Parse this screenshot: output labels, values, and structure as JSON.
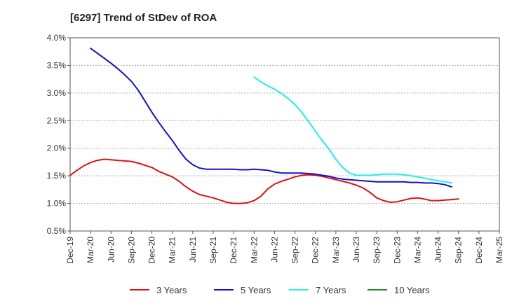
{
  "chart_data": {
    "type": "line",
    "title": "[6297]  Trend of StDev of ROA",
    "xlabel": "",
    "ylabel": "",
    "ylim": [
      0.5,
      4.0
    ],
    "y_ticks": [
      0.5,
      1.0,
      1.5,
      2.0,
      2.5,
      3.0,
      3.5,
      4.0
    ],
    "y_tick_labels": [
      "0.5%",
      "1.0%",
      "1.5%",
      "2.0%",
      "2.5%",
      "3.0%",
      "3.5%",
      "4.0%"
    ],
    "x_tick_labels": [
      "Dec-19",
      "Mar-20",
      "Jun-20",
      "Sep-20",
      "Dec-20",
      "Mar-21",
      "Jun-21",
      "Sep-21",
      "Dec-21",
      "Mar-22",
      "Jun-22",
      "Sep-22",
      "Dec-22",
      "Mar-23",
      "Jun-23",
      "Sep-23",
      "Dec-23",
      "Mar-24",
      "Jun-24",
      "Sep-24",
      "Dec-24",
      "Mar-25"
    ],
    "grid": "horizontal-dashed",
    "legend_position": "bottom",
    "series": [
      {
        "name": "3 Years",
        "color": "#dd1111",
        "points": [
          [
            0,
            1.51
          ],
          [
            0.333,
            1.6
          ],
          [
            0.667,
            1.68
          ],
          [
            1,
            1.74
          ],
          [
            1.333,
            1.78
          ],
          [
            1.667,
            1.8
          ],
          [
            2,
            1.79
          ],
          [
            2.333,
            1.78
          ],
          [
            2.667,
            1.77
          ],
          [
            3,
            1.76
          ],
          [
            3.333,
            1.73
          ],
          [
            3.667,
            1.69
          ],
          [
            4,
            1.65
          ],
          [
            4.333,
            1.58
          ],
          [
            4.667,
            1.53
          ],
          [
            5,
            1.48
          ],
          [
            5.333,
            1.4
          ],
          [
            5.667,
            1.3
          ],
          [
            6,
            1.22
          ],
          [
            6.333,
            1.16
          ],
          [
            6.667,
            1.13
          ],
          [
            7,
            1.1
          ],
          [
            7.333,
            1.06
          ],
          [
            7.667,
            1.02
          ],
          [
            8,
            1.0
          ],
          [
            8.333,
            1.0
          ],
          [
            8.667,
            1.01
          ],
          [
            9,
            1.05
          ],
          [
            9.333,
            1.13
          ],
          [
            9.667,
            1.26
          ],
          [
            10,
            1.35
          ],
          [
            10.333,
            1.4
          ],
          [
            10.667,
            1.44
          ],
          [
            11,
            1.48
          ],
          [
            11.333,
            1.51
          ],
          [
            11.667,
            1.52
          ],
          [
            12,
            1.51
          ],
          [
            12.333,
            1.49
          ],
          [
            12.667,
            1.46
          ],
          [
            13,
            1.43
          ],
          [
            13.333,
            1.4
          ],
          [
            13.667,
            1.37
          ],
          [
            14,
            1.33
          ],
          [
            14.333,
            1.28
          ],
          [
            14.667,
            1.2
          ],
          [
            15,
            1.1
          ],
          [
            15.333,
            1.05
          ],
          [
            15.667,
            1.02
          ],
          [
            16,
            1.03
          ],
          [
            16.333,
            1.06
          ],
          [
            16.667,
            1.09
          ],
          [
            17,
            1.1
          ],
          [
            17.333,
            1.08
          ],
          [
            17.667,
            1.05
          ],
          [
            18,
            1.05
          ],
          [
            18.333,
            1.06
          ],
          [
            18.667,
            1.07
          ],
          [
            19,
            1.08
          ]
        ]
      },
      {
        "name": "5 Years",
        "color": "#1111cc",
        "points": [
          [
            1,
            3.81
          ],
          [
            1.333,
            3.72
          ],
          [
            1.667,
            3.63
          ],
          [
            2,
            3.54
          ],
          [
            2.333,
            3.44
          ],
          [
            2.667,
            3.33
          ],
          [
            3,
            3.21
          ],
          [
            3.333,
            3.05
          ],
          [
            3.667,
            2.85
          ],
          [
            4,
            2.65
          ],
          [
            4.333,
            2.47
          ],
          [
            4.667,
            2.3
          ],
          [
            5,
            2.14
          ],
          [
            5.333,
            1.96
          ],
          [
            5.667,
            1.8
          ],
          [
            6,
            1.7
          ],
          [
            6.333,
            1.64
          ],
          [
            6.667,
            1.62
          ],
          [
            7,
            1.62
          ],
          [
            7.333,
            1.62
          ],
          [
            7.667,
            1.62
          ],
          [
            8,
            1.62
          ],
          [
            8.333,
            1.61
          ],
          [
            8.667,
            1.61
          ],
          [
            9,
            1.62
          ],
          [
            9.333,
            1.61
          ],
          [
            9.667,
            1.6
          ],
          [
            10,
            1.57
          ],
          [
            10.333,
            1.55
          ],
          [
            10.667,
            1.55
          ],
          [
            11,
            1.55
          ],
          [
            11.333,
            1.55
          ],
          [
            11.667,
            1.54
          ],
          [
            12,
            1.53
          ],
          [
            12.333,
            1.51
          ],
          [
            12.667,
            1.49
          ],
          [
            13,
            1.46
          ],
          [
            13.333,
            1.44
          ],
          [
            13.667,
            1.43
          ],
          [
            14,
            1.42
          ],
          [
            14.333,
            1.41
          ],
          [
            14.667,
            1.4
          ],
          [
            15,
            1.39
          ],
          [
            15.333,
            1.39
          ],
          [
            15.667,
            1.39
          ],
          [
            16,
            1.39
          ],
          [
            16.333,
            1.39
          ],
          [
            16.667,
            1.38
          ],
          [
            17,
            1.38
          ],
          [
            17.333,
            1.37
          ],
          [
            17.667,
            1.37
          ],
          [
            18,
            1.36
          ],
          [
            18.333,
            1.34
          ],
          [
            18.667,
            1.3
          ]
        ]
      },
      {
        "name": "7 Years",
        "color": "#22eeee",
        "points": [
          [
            9,
            3.29
          ],
          [
            9.333,
            3.2
          ],
          [
            9.667,
            3.13
          ],
          [
            10,
            3.07
          ],
          [
            10.333,
            2.99
          ],
          [
            10.667,
            2.9
          ],
          [
            11,
            2.79
          ],
          [
            11.333,
            2.65
          ],
          [
            11.667,
            2.48
          ],
          [
            12,
            2.31
          ],
          [
            12.333,
            2.14
          ],
          [
            12.667,
            1.98
          ],
          [
            13,
            1.8
          ],
          [
            13.333,
            1.65
          ],
          [
            13.667,
            1.55
          ],
          [
            14,
            1.51
          ],
          [
            14.333,
            1.51
          ],
          [
            14.667,
            1.51
          ],
          [
            15,
            1.52
          ],
          [
            15.333,
            1.53
          ],
          [
            15.667,
            1.53
          ],
          [
            16,
            1.53
          ],
          [
            16.333,
            1.52
          ],
          [
            16.667,
            1.5
          ],
          [
            17,
            1.48
          ],
          [
            17.333,
            1.46
          ],
          [
            17.667,
            1.43
          ],
          [
            18,
            1.41
          ],
          [
            18.333,
            1.39
          ],
          [
            18.667,
            1.37
          ]
        ]
      },
      {
        "name": "10 Years",
        "color": "#228822",
        "points": []
      }
    ]
  }
}
